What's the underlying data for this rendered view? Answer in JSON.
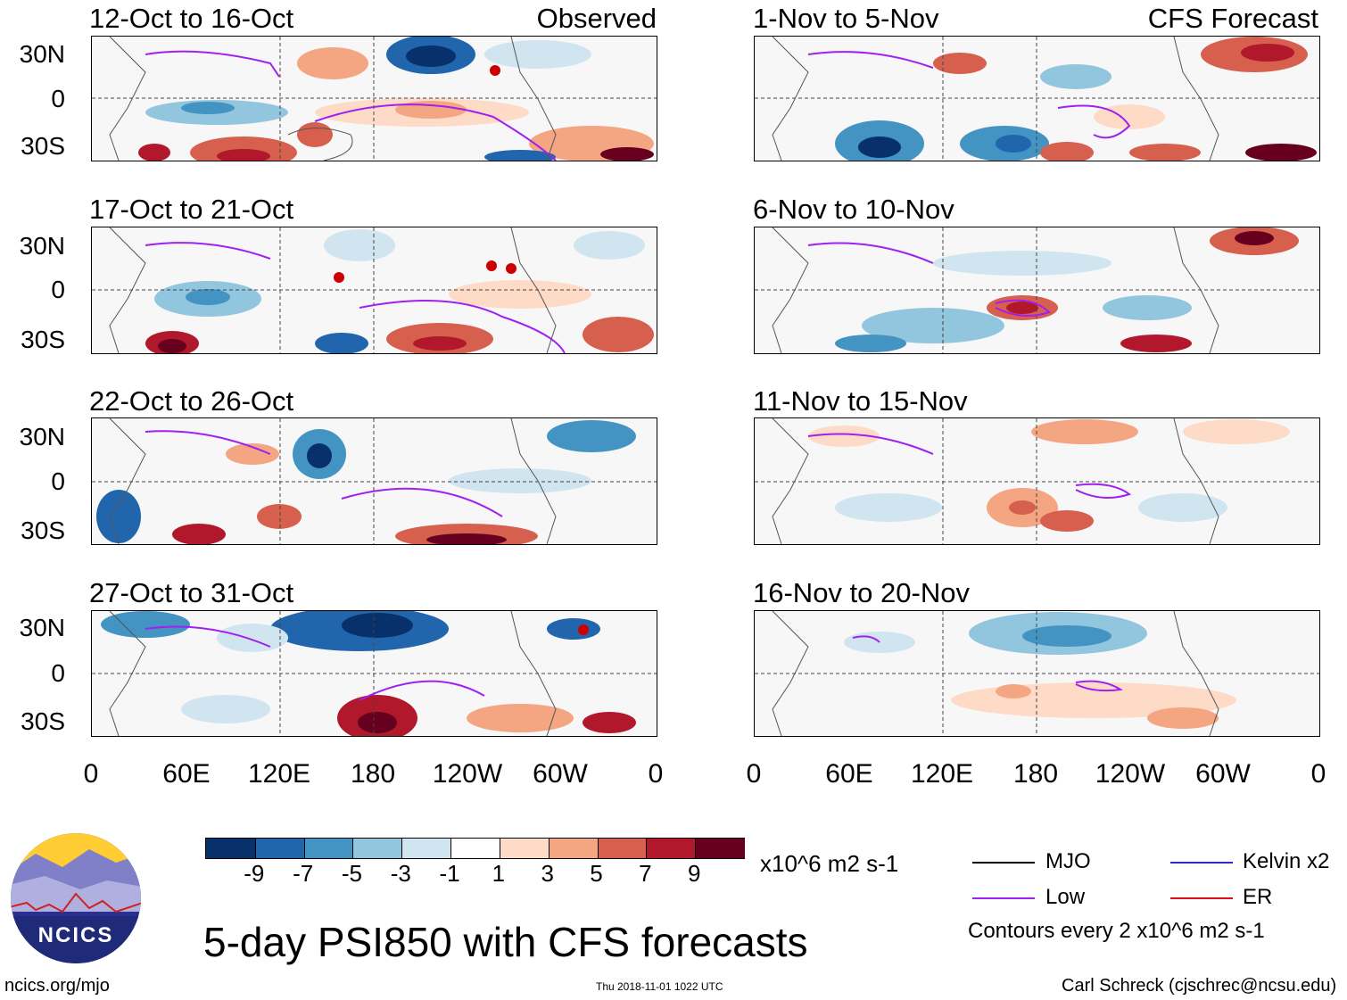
{
  "observed_label": "Observed",
  "forecast_label": "CFS Forecast",
  "lat_labels": [
    "30N",
    "0",
    "30S"
  ],
  "lon_labels": [
    "0",
    "60E",
    "120E",
    "180",
    "120W",
    "60W",
    "0"
  ],
  "panels_left": [
    {
      "title": "12-Oct to 16-Oct"
    },
    {
      "title": "17-Oct to 21-Oct"
    },
    {
      "title": "22-Oct to 26-Oct"
    },
    {
      "title": "27-Oct to 31-Oct"
    }
  ],
  "panels_right": [
    {
      "title": "1-Nov to 5-Nov"
    },
    {
      "title": "6-Nov to 10-Nov"
    },
    {
      "title": "11-Nov to 15-Nov"
    },
    {
      "title": "16-Nov to 20-Nov"
    }
  ],
  "colorbar": {
    "colors": [
      "#08306b",
      "#2166ac",
      "#4393c3",
      "#92c5de",
      "#d1e5f0",
      "#ffffff",
      "#fddbc7",
      "#f4a582",
      "#d6604d",
      "#b2182b",
      "#67001f"
    ],
    "ticks": [
      "-9",
      "-7",
      "-5",
      "-3",
      "-1",
      "1",
      "3",
      "5",
      "7",
      "9"
    ],
    "units": "x10^6 m2 s-1"
  },
  "legend": {
    "items": [
      {
        "label": "MJO",
        "color": "#000000"
      },
      {
        "label": "Kelvin x2",
        "color": "#2b2bd0"
      },
      {
        "label": "Low",
        "color": "#a020f0"
      },
      {
        "label": "ER",
        "color": "#e01010"
      }
    ],
    "contour_note": "Contours every 2 x10^6 m2 s-1"
  },
  "logo_text": "NCICS",
  "main_title": "5-day PSI850 with CFS forecasts",
  "footer": {
    "url": "ncics.org/mjo",
    "timestamp": "Thu 2018-11-01 1022 UTC",
    "credit": "Carl Schreck (cjschrec@ncsu.edu)"
  }
}
